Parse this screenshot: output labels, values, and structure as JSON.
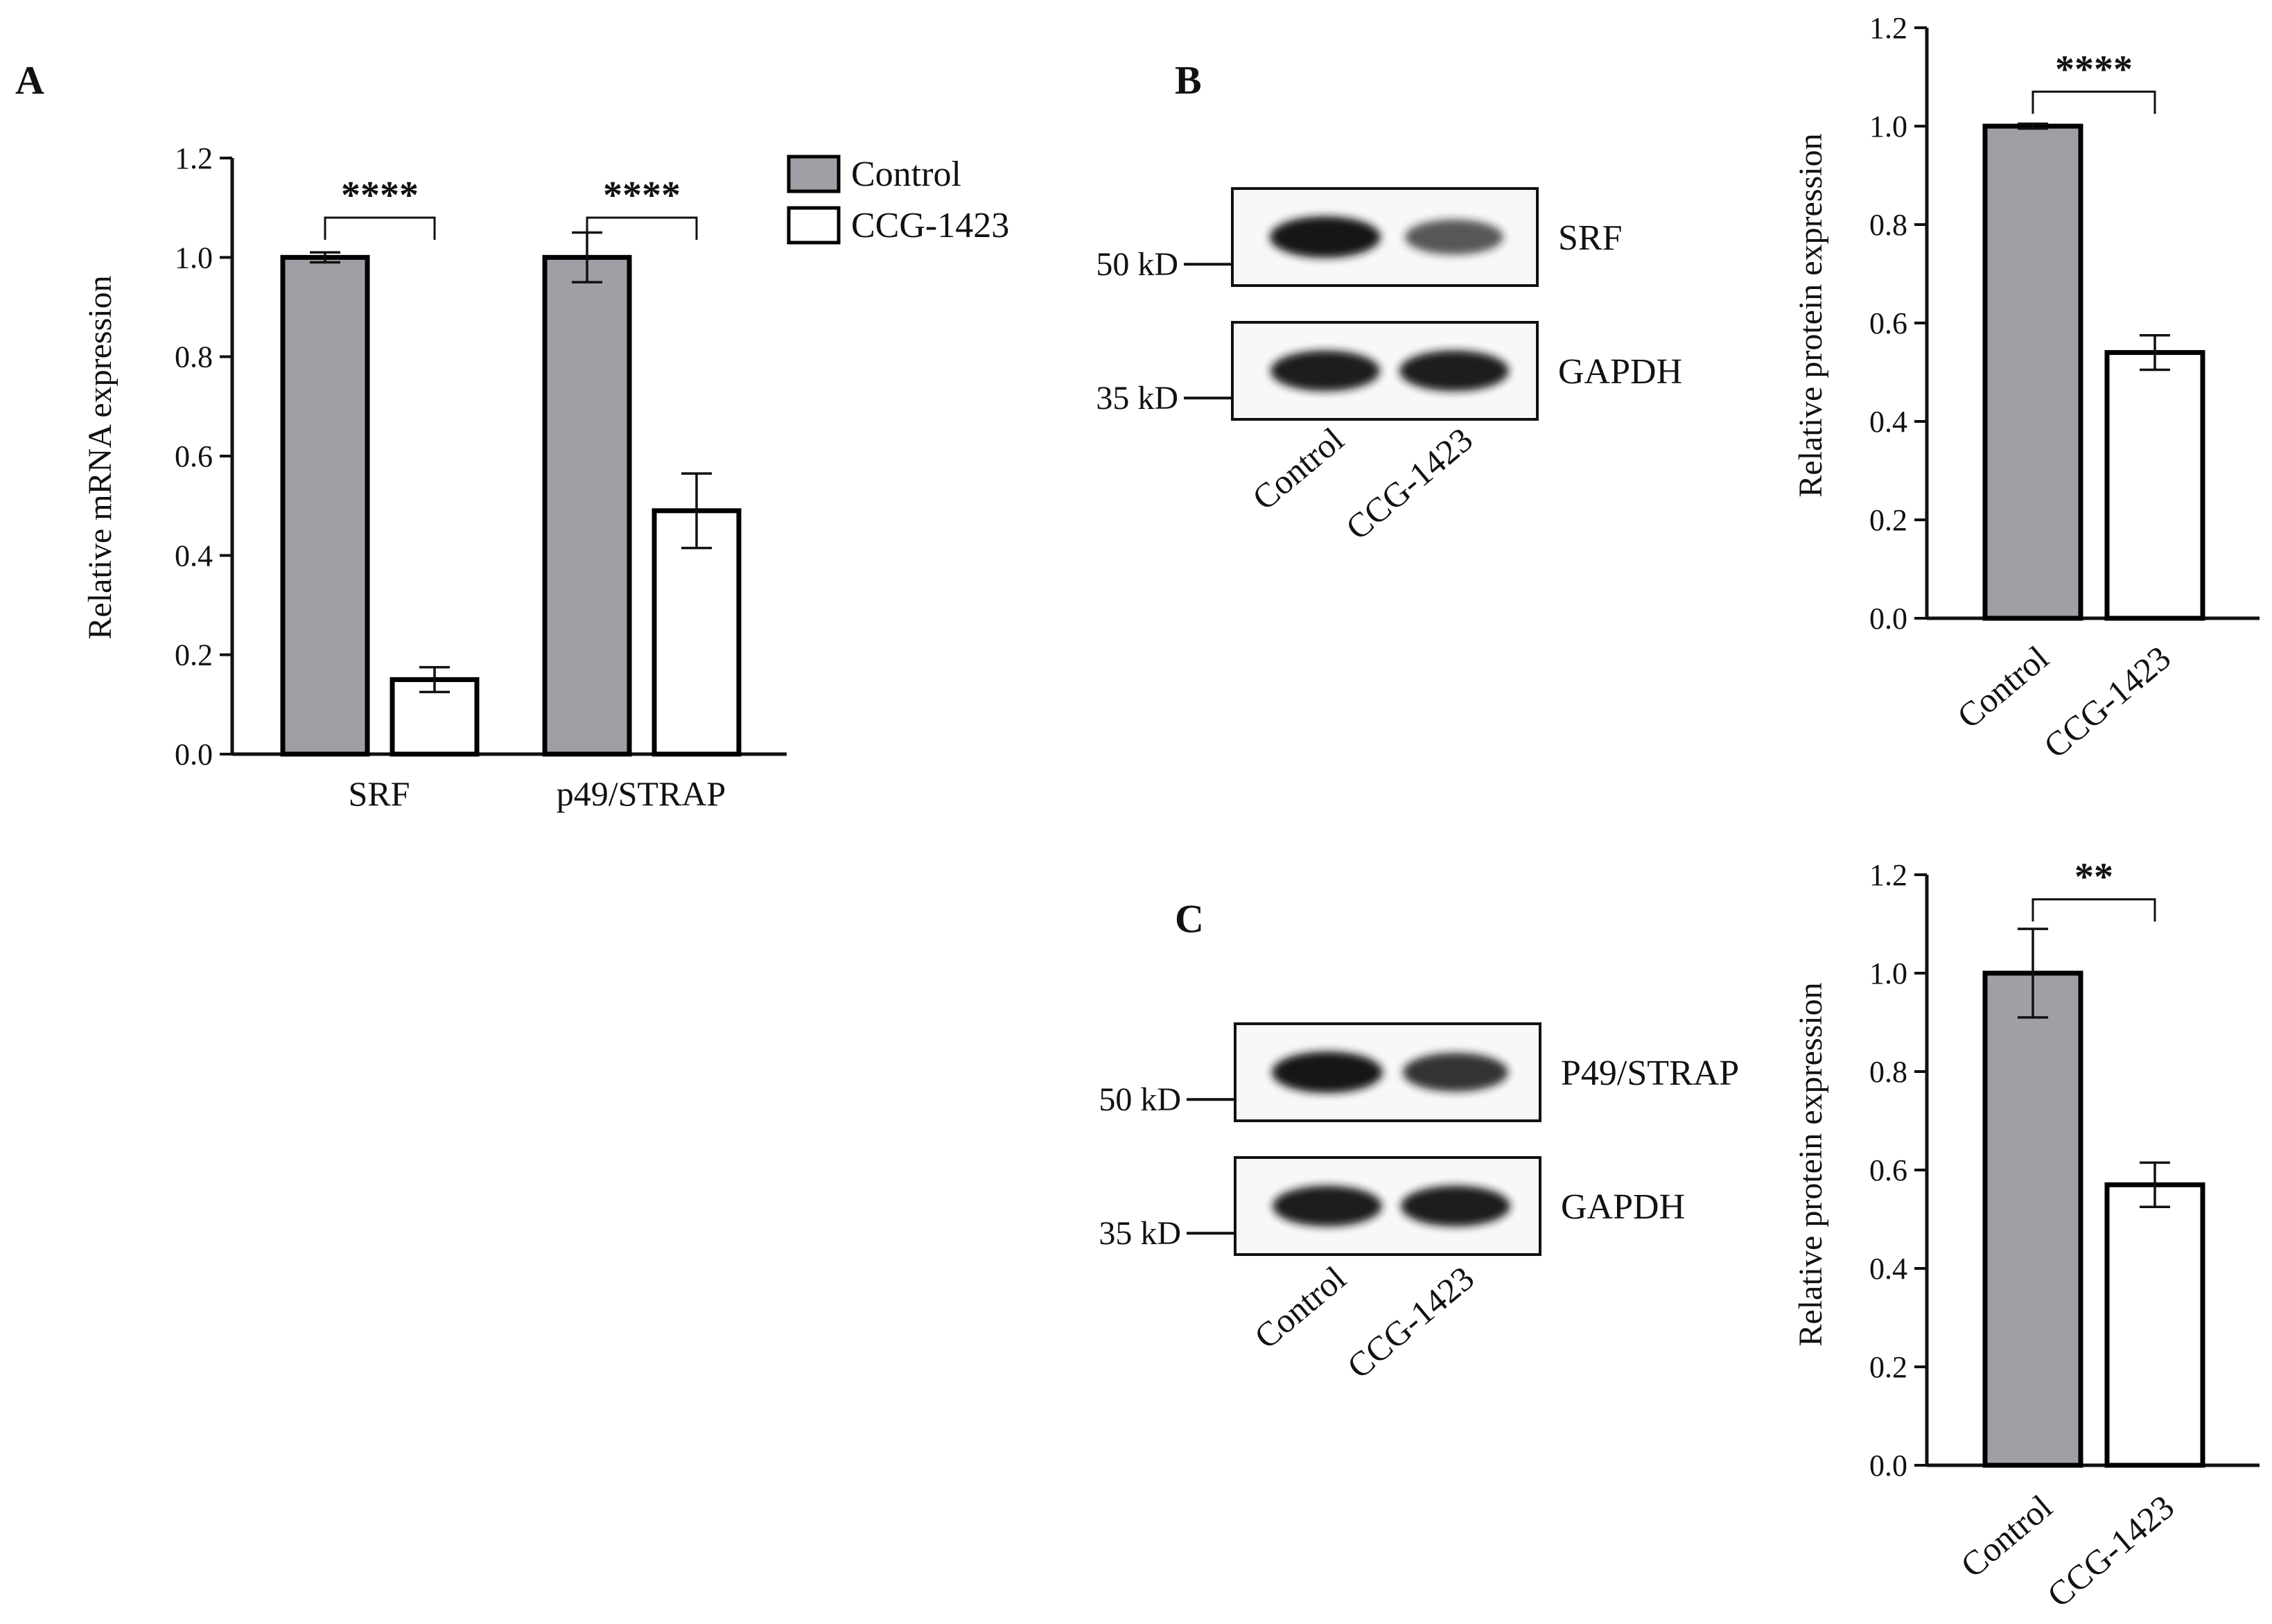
{
  "colors": {
    "control": "#a09fa6",
    "ccg": "#ffffff",
    "band": "#141414"
  },
  "legend": {
    "items": [
      "Control",
      "CCG-1423"
    ]
  },
  "chart_data": [
    {
      "panel": "A",
      "type": "bar",
      "categories": [
        "SRF",
        "p49/STRAP"
      ],
      "series": [
        {
          "name": "Control",
          "values": [
            1.0,
            1.0
          ],
          "errors": [
            0.01,
            0.05
          ]
        },
        {
          "name": "CCG-1423",
          "values": [
            0.15,
            0.49
          ],
          "errors": [
            0.025,
            0.075
          ]
        }
      ],
      "significance": [
        "****",
        "****"
      ],
      "ylabel": "Relative mRNA expression",
      "ylim": [
        0,
        1.2
      ],
      "yticks": [
        "0.0",
        "0.2",
        "0.4",
        "0.6",
        "0.8",
        "1.0",
        "1.2"
      ],
      "legend_position": "top-right"
    },
    {
      "panel": "B",
      "type": "bar",
      "categories": [
        "Control",
        "CCG-1423"
      ],
      "values": [
        1.0,
        0.54
      ],
      "errors": [
        0.005,
        0.035
      ],
      "significance": "****",
      "ylabel": "Relative protein expression",
      "ylim": [
        0,
        1.2
      ],
      "yticks": [
        "0.0",
        "0.2",
        "0.4",
        "0.6",
        "0.8",
        "1.0",
        "1.2"
      ]
    },
    {
      "panel": "C",
      "type": "bar",
      "categories": [
        "Control",
        "CCG-1423"
      ],
      "values": [
        1.0,
        0.57
      ],
      "errors": [
        0.09,
        0.045
      ],
      "significance": "**",
      "ylabel": "Relative protein expression",
      "ylim": [
        0,
        1.2
      ],
      "yticks": [
        "0.0",
        "0.2",
        "0.4",
        "0.6",
        "0.8",
        "1.0",
        "1.2"
      ]
    }
  ],
  "blots": [
    {
      "panel": "B",
      "rows": [
        {
          "label": "SRF",
          "marker": "50 kD",
          "intensity": [
            1.0,
            0.55
          ]
        },
        {
          "label": "GAPDH",
          "marker": "35 kD",
          "intensity": [
            0.95,
            0.95
          ]
        }
      ],
      "lanes": [
        "Control",
        "CCG-1423"
      ]
    },
    {
      "panel": "C",
      "rows": [
        {
          "label": "P49/STRAP",
          "marker": "50 kD",
          "intensity": [
            1.0,
            0.8
          ]
        },
        {
          "label": "GAPDH",
          "marker": "35 kD",
          "intensity": [
            0.95,
            0.95
          ]
        }
      ],
      "lanes": [
        "Control",
        "CCG-1423"
      ]
    }
  ]
}
